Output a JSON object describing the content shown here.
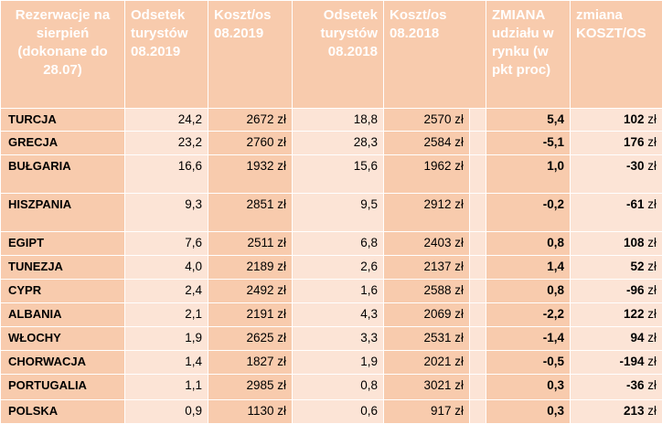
{
  "colors": {
    "header_bg": "#F8CBAD",
    "dark_cell": "#F8CBAD",
    "light_cell": "#FCE4D6",
    "header_text": "#FFFFFF"
  },
  "headers": [
    "Rezerwacje na sierpień (dokonane do 28.07)",
    "Odsetek turystów 08.2019",
    "Koszt/os 08.2019",
    "Odsetek turystów 08.2018",
    "Koszt/os 08.2018",
    "ZMIANA udziału w rynku (w pkt proc)",
    "zmiana KOSZT/OS"
  ],
  "currency": "zł",
  "rows": [
    {
      "country": "TURCJA",
      "share2019": "24,2",
      "cost2019": "2672 zł",
      "share2018": "18,8",
      "cost2018": "2570 zł",
      "share_change": "5,4",
      "cost_change": "102"
    },
    {
      "country": "GRECJA",
      "share2019": "23,2",
      "cost2019": "2760 zł",
      "share2018": "28,3",
      "cost2018": "2584 zł",
      "share_change": "-5,1",
      "cost_change": "176"
    },
    {
      "country": "BUŁGARIA",
      "share2019": "16,6",
      "cost2019": "1932 zł",
      "share2018": "15,6",
      "cost2018": "1962 zł",
      "share_change": "1,0",
      "cost_change": "-30"
    },
    {
      "country": "HISZPANIA",
      "share2019": "9,3",
      "cost2019": "2851 zł",
      "share2018": "9,5",
      "cost2018": "2912 zł",
      "share_change": "-0,2",
      "cost_change": "-61"
    },
    {
      "country": "EGIPT",
      "share2019": "7,6",
      "cost2019": "2511 zł",
      "share2018": "6,8",
      "cost2018": "2403 zł",
      "share_change": "0,8",
      "cost_change": "108"
    },
    {
      "country": "TUNEZJA",
      "share2019": "4,0",
      "cost2019": "2189 zł",
      "share2018": "2,6",
      "cost2018": "2137 zł",
      "share_change": "1,4",
      "cost_change": "52"
    },
    {
      "country": "CYPR",
      "share2019": "2,4",
      "cost2019": "2492 zł",
      "share2018": "1,6",
      "cost2018": "2588 zł",
      "share_change": "0,8",
      "cost_change": "-96"
    },
    {
      "country": "ALBANIA",
      "share2019": "2,1",
      "cost2019": "2191 zł",
      "share2018": "4,3",
      "cost2018": "2069 zł",
      "share_change": "-2,2",
      "cost_change": "122"
    },
    {
      "country": "WŁOCHY",
      "share2019": "1,9",
      "cost2019": "2625 zł",
      "share2018": "3,3",
      "cost2018": "2531 zł",
      "share_change": "-1,4",
      "cost_change": "94"
    },
    {
      "country": "CHORWACJA",
      "share2019": "1,4",
      "cost2019": "1827 zł",
      "share2018": "1,9",
      "cost2018": "2021 zł",
      "share_change": "-0,5",
      "cost_change": "-194"
    },
    {
      "country": "PORTUGALIA",
      "share2019": "1,1",
      "cost2019": "2985 zł",
      "share2018": "0,8",
      "cost2018": "3021 zł",
      "share_change": "0,3",
      "cost_change": "-36"
    },
    {
      "country": "POLSKA",
      "share2019": "0,9",
      "cost2019": "1130 zł",
      "share2018": "0,6",
      "cost2018": "917 zł",
      "share_change": "0,3",
      "cost_change": "213"
    }
  ]
}
